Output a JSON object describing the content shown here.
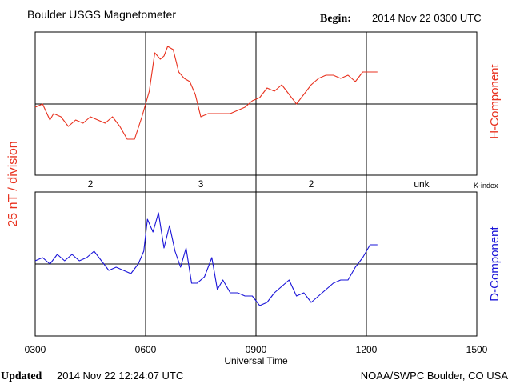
{
  "header": {
    "title": "Boulder USGS Magnetometer",
    "begin_label": "Begin:",
    "begin_value": "2014 Nov 22 0300 UTC"
  },
  "footer": {
    "updated_label": "Updated",
    "updated_value": "2014 Nov 22 12:24:07 UTC",
    "credit": "NOAA/SWPC Boulder, CO USA"
  },
  "colors": {
    "h_component": "#e8321f",
    "d_component": "#1a14d8",
    "axes": "#000000"
  },
  "chart_data": {
    "type": "line",
    "scale_label": "25 nT / division",
    "xlabel": "Universal Time",
    "x_ticks": [
      "0300",
      "0600",
      "0900",
      "1200",
      "1500"
    ],
    "x_range_hours_ut": [
      3,
      15
    ],
    "grid": true,
    "kindex_label": "K-index",
    "kindex": [
      {
        "label": "2",
        "start_hour": 3,
        "end_hour": 6
      },
      {
        "label": "3",
        "start_hour": 6,
        "end_hour": 9
      },
      {
        "label": "2",
        "start_hour": 9,
        "end_hour": 12
      },
      {
        "label": "unk",
        "start_hour": 12,
        "end_hour": 15
      }
    ],
    "series": [
      {
        "name": "H-Component",
        "color": "#e8321f",
        "panel": "top",
        "x": [
          3.0,
          3.2,
          3.4,
          3.5,
          3.7,
          3.9,
          4.1,
          4.3,
          4.5,
          4.7,
          4.9,
          5.1,
          5.3,
          5.5,
          5.7,
          5.9,
          6.1,
          6.25,
          6.4,
          6.5,
          6.6,
          6.75,
          6.9,
          7.05,
          7.2,
          7.35,
          7.5,
          7.7,
          7.9,
          8.1,
          8.3,
          8.5,
          8.7,
          8.9,
          9.1,
          9.3,
          9.5,
          9.7,
          9.9,
          10.1,
          10.3,
          10.5,
          10.7,
          10.9,
          11.1,
          11.3,
          11.5,
          11.7,
          11.9,
          12.1,
          12.3
        ],
        "y": [
          -0.1,
          0.0,
          -0.5,
          -0.3,
          -0.4,
          -0.7,
          -0.5,
          -0.6,
          -0.4,
          -0.5,
          -0.6,
          -0.4,
          -0.7,
          -1.1,
          -1.1,
          -0.4,
          0.4,
          1.6,
          1.4,
          1.5,
          1.8,
          1.7,
          1.0,
          0.8,
          0.7,
          0.3,
          -0.4,
          -0.3,
          -0.3,
          -0.3,
          -0.3,
          -0.2,
          -0.1,
          0.1,
          0.2,
          0.5,
          0.4,
          0.6,
          0.3,
          0.0,
          0.3,
          0.6,
          0.8,
          0.9,
          0.9,
          0.8,
          0.9,
          0.7,
          1.0,
          1.0,
          1.0
        ]
      },
      {
        "name": "D-Component",
        "color": "#1a14d8",
        "panel": "bottom",
        "x": [
          3.0,
          3.2,
          3.4,
          3.6,
          3.8,
          4.0,
          4.2,
          4.4,
          4.6,
          4.8,
          5.0,
          5.2,
          5.4,
          5.6,
          5.8,
          5.95,
          6.05,
          6.2,
          6.35,
          6.5,
          6.65,
          6.8,
          6.95,
          7.1,
          7.25,
          7.4,
          7.6,
          7.8,
          7.95,
          8.1,
          8.3,
          8.5,
          8.7,
          8.9,
          9.1,
          9.3,
          9.5,
          9.7,
          9.9,
          10.1,
          10.3,
          10.5,
          10.7,
          10.9,
          11.1,
          11.3,
          11.5,
          11.7,
          11.9,
          12.1,
          12.3
        ],
        "y": [
          0.1,
          0.2,
          0.0,
          0.3,
          0.1,
          0.3,
          0.1,
          0.2,
          0.4,
          0.1,
          -0.2,
          -0.1,
          -0.2,
          -0.3,
          0.0,
          0.4,
          1.4,
          1.0,
          1.6,
          0.5,
          1.2,
          0.4,
          -0.1,
          0.5,
          -0.6,
          -0.6,
          -0.4,
          0.2,
          -0.8,
          -0.5,
          -0.9,
          -0.9,
          -1.0,
          -1.0,
          -1.3,
          -1.2,
          -0.9,
          -0.7,
          -0.5,
          -1.0,
          -0.9,
          -1.2,
          -1.0,
          -0.8,
          -0.6,
          -0.5,
          -0.5,
          -0.1,
          0.2,
          0.6,
          0.6
        ]
      }
    ]
  }
}
